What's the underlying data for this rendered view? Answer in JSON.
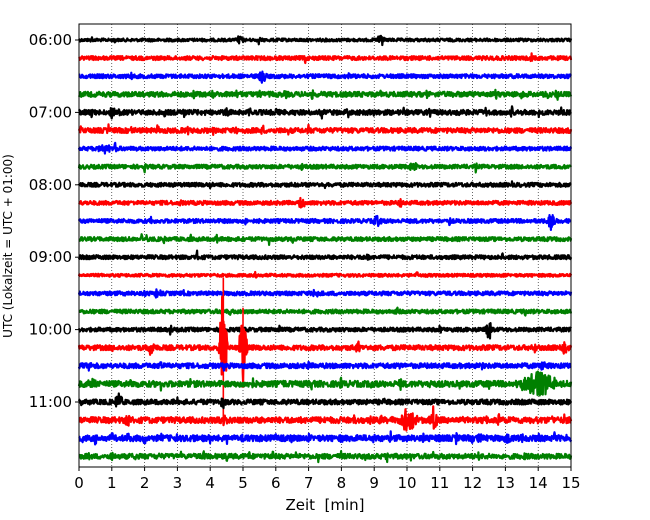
{
  "chart_data": {
    "type": "line",
    "subtype": "helicorder",
    "title": "",
    "xlabel": "Zeit  [min]",
    "ylabel": "UTC (Lokalzeit = UTC + 01:00)",
    "xlim": [
      0,
      15
    ],
    "x_ticks": [
      0,
      1,
      2,
      3,
      4,
      5,
      6,
      7,
      8,
      9,
      10,
      11,
      12,
      13,
      14,
      15
    ],
    "x_tick_labels": [
      "0",
      "1",
      "2",
      "3",
      "4",
      "5",
      "6",
      "7",
      "8",
      "9",
      "10",
      "11",
      "12",
      "13",
      "14",
      "15"
    ],
    "vertical_grid": true,
    "y_tick_labels": [
      {
        "label": "06:00",
        "trace": 0
      },
      {
        "label": "07:00",
        "trace": 4
      },
      {
        "label": "08:00",
        "trace": 8
      },
      {
        "label": "09:00",
        "trace": 12
      },
      {
        "label": "10:00",
        "trace": 16
      },
      {
        "label": "11:00",
        "trace": 20
      }
    ],
    "trace_minutes": 15,
    "trace_count": 24,
    "color_cycle": [
      "#000000",
      "#ff0000",
      "#0000ff",
      "#008000"
    ],
    "series": [
      {
        "name": "06:00",
        "color": "#000000",
        "noise": 1.5,
        "spikes": [
          0.4,
          1.1,
          5.5
        ],
        "events": [
          {
            "t": 4.9,
            "amp": 5
          },
          {
            "t": 9.2,
            "amp": 8
          }
        ]
      },
      {
        "name": "06:15",
        "color": "#ff0000",
        "noise": 2,
        "spikes": [
          2.1,
          6.9,
          13.8
        ],
        "events": []
      },
      {
        "name": "06:30",
        "color": "#0000ff",
        "noise": 2,
        "spikes": [
          1.6,
          8.2
        ],
        "events": [
          {
            "t": 5.6,
            "amp": 7
          }
        ]
      },
      {
        "name": "06:45",
        "color": "#008000",
        "noise": 2.5,
        "spikes": [
          3.5,
          4.1,
          4.8,
          5.5,
          6.3,
          7.1,
          8.0,
          9.2,
          10.6,
          11.4,
          12.7,
          13.5,
          14.3
        ],
        "events": [
          {
            "t": 14.6,
            "amp": 6
          }
        ]
      },
      {
        "name": "07:00",
        "color": "#000000",
        "noise": 2.5,
        "spikes": [
          0.4,
          1.2,
          1.9,
          2.6,
          3.2,
          3.8,
          4.5,
          5.2,
          6.0,
          6.6,
          7.4,
          8.2,
          9.0,
          9.9,
          10.7,
          11.6,
          12.4,
          13.2,
          14.0,
          14.7
        ],
        "events": [
          {
            "t": 1.0,
            "amp": 6
          }
        ]
      },
      {
        "name": "07:15",
        "color": "#ff0000",
        "noise": 2.5,
        "spikes": [
          0.05,
          0.9,
          1.6,
          2.4,
          3.3,
          4.1,
          4.8,
          5.6,
          6.4,
          7.0
        ],
        "events": []
      },
      {
        "name": "07:30",
        "color": "#0000ff",
        "noise": 2,
        "spikes": [
          0.6,
          0.9,
          1.1
        ],
        "events": [
          {
            "t": 0.8,
            "amp": 5
          }
        ]
      },
      {
        "name": "07:45",
        "color": "#008000",
        "noise": 2,
        "spikes": [
          2.0,
          6.8,
          12.1
        ],
        "events": [
          {
            "t": 10.2,
            "amp": 5
          }
        ]
      },
      {
        "name": "08:00",
        "color": "#000000",
        "noise": 2,
        "spikes": [
          4.0,
          7.5,
          13.2
        ],
        "events": []
      },
      {
        "name": "08:15",
        "color": "#ff0000",
        "noise": 2,
        "spikes": [
          3.1,
          9.8
        ],
        "events": [
          {
            "t": 6.8,
            "amp": 6
          }
        ]
      },
      {
        "name": "08:30",
        "color": "#0000ff",
        "noise": 2,
        "spikes": [
          2.2,
          5.1,
          11.3
        ],
        "events": [
          {
            "t": 9.1,
            "amp": 6
          },
          {
            "t": 14.4,
            "amp": 11
          }
        ]
      },
      {
        "name": "08:45",
        "color": "#008000",
        "noise": 2,
        "spikes": [
          1.9,
          2.6,
          3.4,
          4.2,
          5.0,
          5.8,
          6.5
        ],
        "events": [
          {
            "t": 2.0,
            "amp": 4
          }
        ]
      },
      {
        "name": "09:00",
        "color": "#000000",
        "noise": 2,
        "spikes": [
          3.6,
          8.8,
          12.9
        ],
        "events": []
      },
      {
        "name": "09:15",
        "color": "#ff0000",
        "noise": 1.5,
        "spikes": [
          5.4,
          10.3
        ],
        "events": []
      },
      {
        "name": "09:30",
        "color": "#0000ff",
        "noise": 2,
        "spikes": [
          1.4,
          2.0,
          3.2,
          7.5
        ],
        "events": [
          {
            "t": 2.4,
            "amp": 6
          },
          {
            "t": 7.2,
            "amp": 4
          }
        ]
      },
      {
        "name": "09:45",
        "color": "#008000",
        "noise": 2,
        "spikes": [
          4.6,
          9.7,
          13.6
        ],
        "events": []
      },
      {
        "name": "10:00",
        "color": "#000000",
        "noise": 2,
        "spikes": [
          2.8,
          6.1,
          11.0
        ],
        "events": [
          {
            "t": 12.5,
            "amp": 11
          }
        ]
      },
      {
        "name": "10:15",
        "color": "#ff0000",
        "noise": 2.5,
        "spikes": [
          1.0,
          8.5,
          13.9
        ],
        "events": [
          {
            "t": 2.2,
            "amp": 8
          },
          {
            "t": 4.4,
            "amp": 75,
            "up": 70
          },
          {
            "t": 5.0,
            "amp": 40,
            "up": 40
          },
          {
            "t": 8.5,
            "amp": 5
          },
          {
            "t": 14.8,
            "amp": 5
          }
        ]
      },
      {
        "name": "10:30",
        "color": "#0000ff",
        "noise": 2.5,
        "spikes": [
          0.3,
          2.5,
          4.4,
          7.0,
          9.8,
          12.3
        ],
        "events": [
          {
            "t": 0.3,
            "amp": 4
          },
          {
            "t": 14.1,
            "amp": 5
          }
        ]
      },
      {
        "name": "10:45",
        "color": "#008000",
        "noise": 3,
        "spikes": [
          0.7,
          1.6,
          2.5,
          3.4,
          4.4,
          5.3,
          6.2,
          7.1,
          8.0,
          8.9,
          9.8,
          10.7,
          11.6,
          12.5
        ],
        "events": [
          {
            "t": 0.4,
            "amp": 7
          },
          {
            "t": 14.0,
            "amp": 14,
            "width": 0.7
          }
        ]
      },
      {
        "name": "11:00",
        "color": "#000000",
        "noise": 2.5,
        "spikes": [
          3.0,
          6.5,
          9.3
        ],
        "events": [
          {
            "t": 0.05,
            "amp": 7
          },
          {
            "t": 1.2,
            "amp": 11
          },
          {
            "t": 4.4,
            "amp": 6
          }
        ]
      },
      {
        "name": "11:15",
        "color": "#ff0000",
        "noise": 3,
        "spikes": [
          7.5,
          8.0,
          8.4,
          8.9,
          9.2,
          9.5,
          11.2,
          11.7,
          12.0,
          12.4,
          12.8,
          13.2,
          13.6,
          14.0,
          14.4,
          14.8
        ],
        "events": [
          {
            "t": 1.5,
            "amp": 7
          },
          {
            "t": 10.0,
            "amp": 13,
            "width": 0.4
          },
          {
            "t": 10.8,
            "amp": 15
          },
          {
            "t": 4.4,
            "amp": 6
          }
        ]
      },
      {
        "name": "11:30",
        "color": "#0000ff",
        "noise": 3,
        "spikes": [
          0.1,
          0.5,
          1.0,
          1.5,
          2.0,
          2.5,
          3.0,
          3.5,
          4.0,
          4.5,
          5.0,
          5.5,
          6.0,
          6.5,
          7.0,
          7.5,
          8.0,
          8.5,
          9.0,
          9.5,
          10.0,
          10.5,
          11.0,
          11.5,
          12.0,
          12.5,
          13.0,
          13.5,
          14.0,
          14.5,
          14.9
        ],
        "events": [
          {
            "t": 12.2,
            "amp": 5
          },
          {
            "t": 13.1,
            "amp": 4
          }
        ]
      },
      {
        "name": "11:45",
        "color": "#008000",
        "noise": 2.5,
        "spikes": [
          0.3,
          1.0,
          1.7,
          2.4,
          3.1,
          3.8,
          4.5,
          5.2,
          5.9,
          6.6,
          7.3,
          8.0,
          8.7,
          9.4,
          10.1,
          10.8,
          11.5,
          12.2,
          12.9,
          13.6,
          14.3
        ],
        "events": []
      }
    ]
  }
}
